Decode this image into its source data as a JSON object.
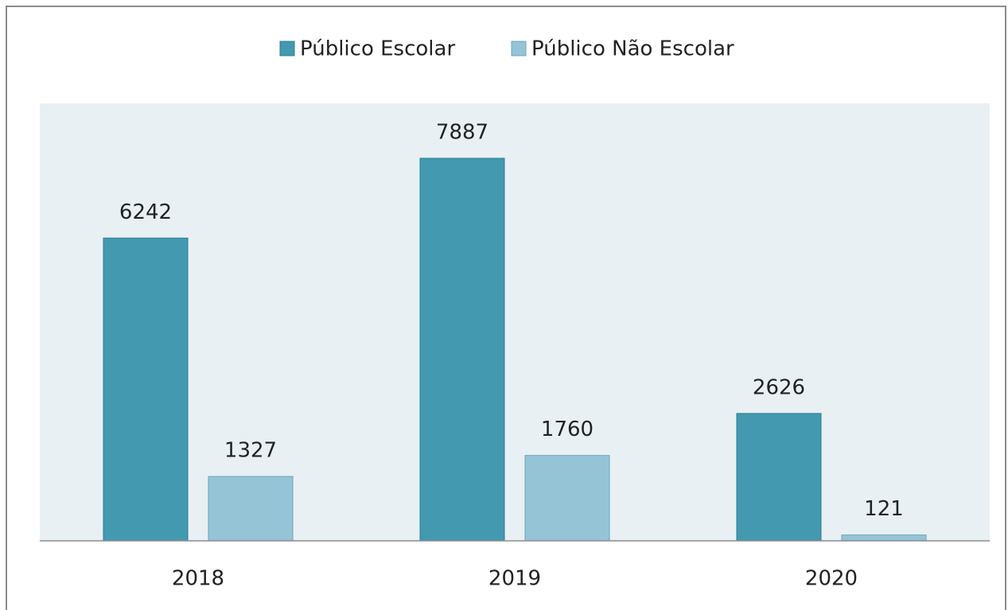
{
  "chart_data": {
    "type": "bar",
    "categories": [
      "2018",
      "2019",
      "2020"
    ],
    "series": [
      {
        "name": "Público Escolar",
        "color": "#4299b0",
        "values": [
          6242,
          7887,
          2626
        ]
      },
      {
        "name": "Público Não Escolar",
        "color": "#95c4d6",
        "values": [
          1327,
          1760,
          121
        ]
      }
    ],
    "legend": "top"
  }
}
